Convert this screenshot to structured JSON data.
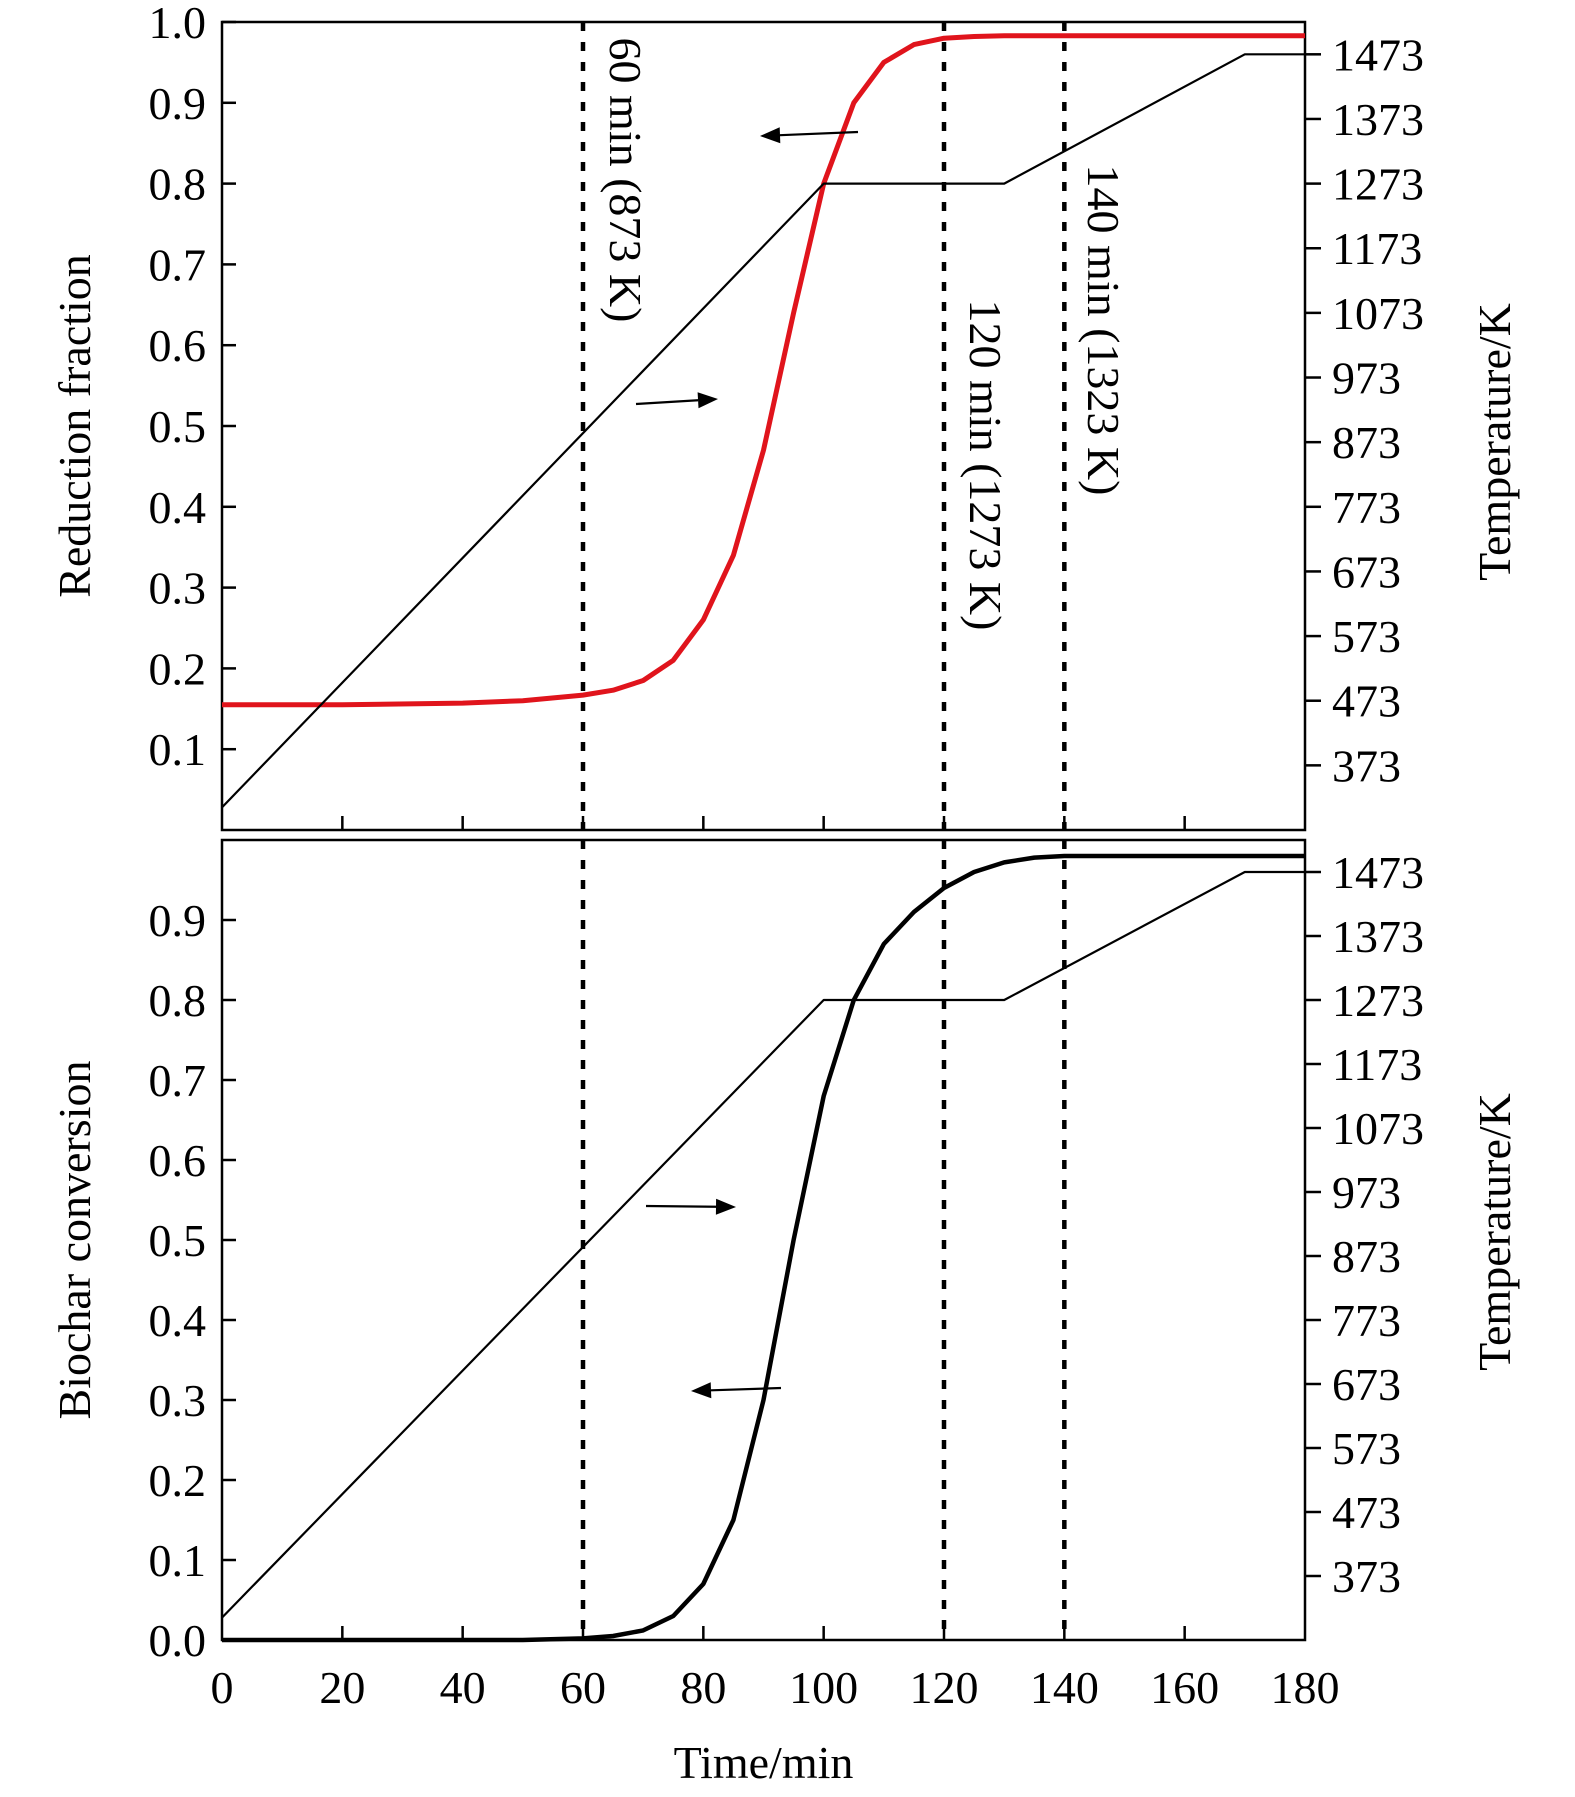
{
  "chart_data": [
    {
      "type": "line",
      "panel": "top",
      "ylabel": "Reduction fraction",
      "y2label": "Temperature/K",
      "xlim": [
        0,
        180
      ],
      "ylim": [
        0.0,
        1.0
      ],
      "y2lim": [
        273,
        1523
      ],
      "yticks": [
        0.1,
        0.2,
        0.3,
        0.4,
        0.5,
        0.6,
        0.7,
        0.8,
        0.9,
        1.0
      ],
      "ytick_labels": [
        "0.1",
        "0.2",
        "0.3",
        "0.4",
        "0.5",
        "0.6",
        "0.7",
        "0.8",
        "0.9",
        "1.0"
      ],
      "y2ticks": [
        373,
        473,
        573,
        673,
        773,
        873,
        973,
        1073,
        1173,
        1273,
        1373,
        1473
      ],
      "y2tick_labels": [
        "373",
        "473",
        "573",
        "673",
        "773",
        "873",
        "973",
        "1073",
        "1173",
        "1273",
        "1373",
        "1473"
      ],
      "series": [
        {
          "color": "#e0141c",
          "axis": "left",
          "x": [
            0,
            20,
            40,
            50,
            60,
            65,
            70,
            75,
            80,
            85,
            90,
            95,
            100,
            105,
            110,
            115,
            120,
            125,
            130,
            140,
            160,
            180
          ],
          "y": [
            0.155,
            0.155,
            0.157,
            0.16,
            0.167,
            0.173,
            0.185,
            0.21,
            0.26,
            0.34,
            0.47,
            0.64,
            0.8,
            0.9,
            0.95,
            0.972,
            0.98,
            0.982,
            0.983,
            0.983,
            0.983,
            0.983
          ]
        },
        {
          "color": "#000000",
          "axis": "right",
          "x": [
            0,
            100,
            130,
            170,
            180
          ],
          "y": [
            308,
            1273,
            1273,
            1473,
            1473
          ]
        }
      ],
      "vlines": [
        {
          "x": 60,
          "label": "60 min (873 K)"
        },
        {
          "x": 120,
          "label": "120 min (1273 K)"
        },
        {
          "x": 140,
          "label": "140 min (1323 K)"
        }
      ]
    },
    {
      "type": "line",
      "panel": "bottom",
      "ylabel": "Biochar conversion",
      "y2label": "Temperature/K",
      "xlabel": "Time/min",
      "xlim": [
        0,
        180
      ],
      "ylim": [
        0.0,
        1.0
      ],
      "y2lim": [
        273,
        1523
      ],
      "xticks": [
        0,
        20,
        40,
        60,
        80,
        100,
        120,
        140,
        160,
        180
      ],
      "xtick_labels": [
        "0",
        "20",
        "40",
        "60",
        "80",
        "100",
        "120",
        "140",
        "160",
        "180"
      ],
      "yticks": [
        0.0,
        0.1,
        0.2,
        0.3,
        0.4,
        0.5,
        0.6,
        0.7,
        0.8,
        0.9
      ],
      "ytick_labels": [
        "0.0",
        "0.1",
        "0.2",
        "0.3",
        "0.4",
        "0.5",
        "0.6",
        "0.7",
        "0.8",
        "0.9"
      ],
      "y2ticks": [
        373,
        473,
        573,
        673,
        773,
        873,
        973,
        1073,
        1173,
        1273,
        1373,
        1473
      ],
      "y2tick_labels": [
        "373",
        "473",
        "573",
        "673",
        "773",
        "873",
        "973",
        "1073",
        "1173",
        "1273",
        "1373",
        "1473"
      ],
      "series": [
        {
          "color": "#000000",
          "axis": "left",
          "x": [
            0,
            50,
            60,
            65,
            70,
            75,
            80,
            85,
            90,
            95,
            100,
            105,
            110,
            115,
            120,
            125,
            130,
            135,
            140,
            160,
            180
          ],
          "y": [
            0.0,
            0.0,
            0.002,
            0.005,
            0.012,
            0.03,
            0.07,
            0.15,
            0.3,
            0.5,
            0.68,
            0.8,
            0.87,
            0.91,
            0.94,
            0.96,
            0.972,
            0.978,
            0.98,
            0.98,
            0.98
          ]
        },
        {
          "color": "#000000",
          "axis": "right",
          "x": [
            0,
            100,
            130,
            170,
            180
          ],
          "y": [
            308,
            1273,
            1273,
            1473,
            1473
          ]
        }
      ],
      "vlines": [
        {
          "x": 60
        },
        {
          "x": 120
        },
        {
          "x": 140
        }
      ]
    }
  ]
}
